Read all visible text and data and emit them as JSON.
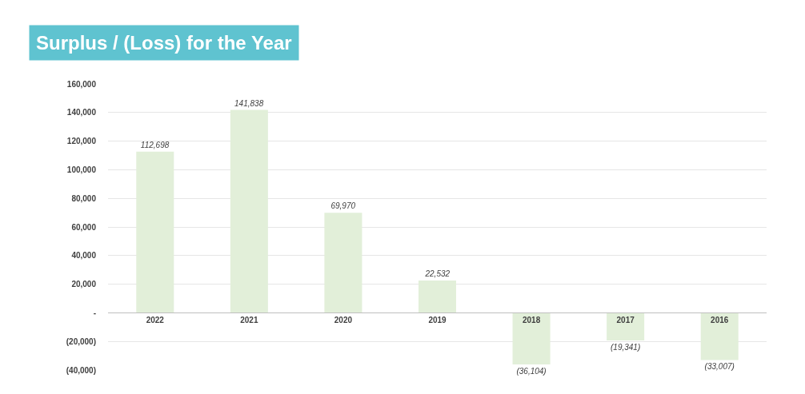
{
  "chart_data": {
    "type": "bar",
    "title": "Surplus / (Loss) for the Year",
    "categories": [
      "2022",
      "2021",
      "2020",
      "2019",
      "2018",
      "2017",
      "2016"
    ],
    "values": [
      112698,
      141838,
      69970,
      22532,
      -36104,
      -19341,
      -33007
    ],
    "value_labels": [
      "112,698",
      "141,838",
      "69,970",
      "22,532",
      "(36,104)",
      "(19,341)",
      "(33,007)"
    ],
    "color": "#e2efd9",
    "ylim": [
      -40000,
      160000
    ],
    "yticks": [
      {
        "value": -40000,
        "label": "(40,000)"
      },
      {
        "value": -20000,
        "label": "(20,000)"
      },
      {
        "value": 0,
        "label": "-"
      },
      {
        "value": 20000,
        "label": "20,000"
      },
      {
        "value": 40000,
        "label": "40,000"
      },
      {
        "value": 60000,
        "label": "60,000"
      },
      {
        "value": 80000,
        "label": "80,000"
      },
      {
        "value": 100000,
        "label": "100,000"
      },
      {
        "value": 120000,
        "label": "120,000"
      },
      {
        "value": 140000,
        "label": "140,000"
      },
      {
        "value": 160000,
        "label": "160,000"
      }
    ],
    "grid": "y",
    "legend": false
  }
}
